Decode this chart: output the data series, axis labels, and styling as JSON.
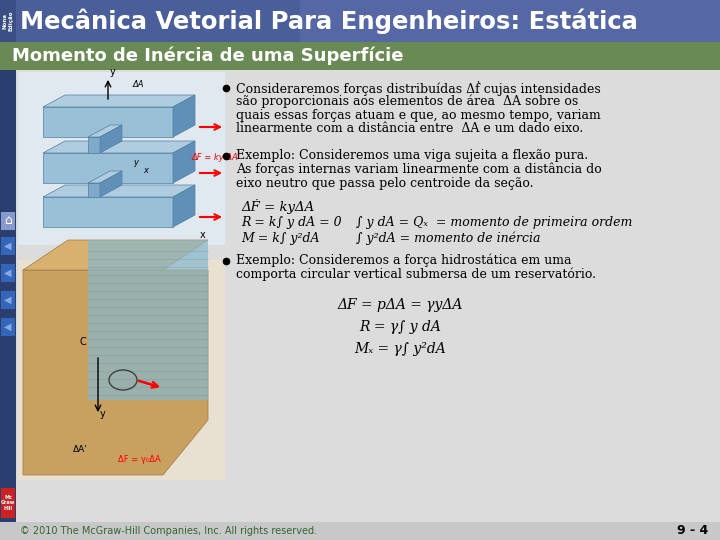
{
  "title": "Mecânica Vetorial Para Engenheiros: Estática",
  "subtitle": "Momento de Inércia de uma Superfície",
  "nona_text": "Nona\nEdição",
  "header_bg": "#5068a0",
  "header_bg2": "#7080b0",
  "subtitle_bg": "#6a8a55",
  "body_bg": "#dcdcdc",
  "title_color": "#ffffff",
  "subtitle_color": "#ffffff",
  "footer_text": "© 2010 The McGraw-Hill Companies, Inc. All rights reserved.",
  "page_num": "9 - 4",
  "left_nav_bg": "#2a3f70",
  "nav_home_color": "#5566aa",
  "nav_arrow_color": "#4477cc",
  "mcgraw_red": "#cc2222",
  "bullet_texts": [
    "Consideraremos forças distribuídas Δḟ cujas intensidades",
    "são proporcionais aos elementos de área  ΔA sobre os",
    "quais essas forças atuam e que, ao mesmo tempo, variam",
    "linearmente com a distância entre  ΔA e um dado eixo."
  ],
  "bullet2_texts": [
    "Exemplo: Consideremos uma viga sujeita a flexão pura.",
    "As forças internas variam linearmente com a distância do",
    "eixo neutro que passa pelo centroide da seção."
  ],
  "bullet3_texts": [
    "Exemplo: Consideremos a força hidrostática em uma",
    "comporta circular vertical submersa de um reservatório."
  ],
  "eq1": "ΔḞ = kyΔA",
  "eq2a": "R = k∫ y dA = 0",
  "eq2b": "∫ y dA = Qₓ  = momento de primeira ordem",
  "eq3a": "M = k∫ y²dA",
  "eq3b": "∫ y²dA = momento de inércia",
  "eq4": "ΔF = pΔA = γyΔA",
  "eq5": "R = γ∫ y dA",
  "eq6": "Mₓ = γ∫ y²dA"
}
